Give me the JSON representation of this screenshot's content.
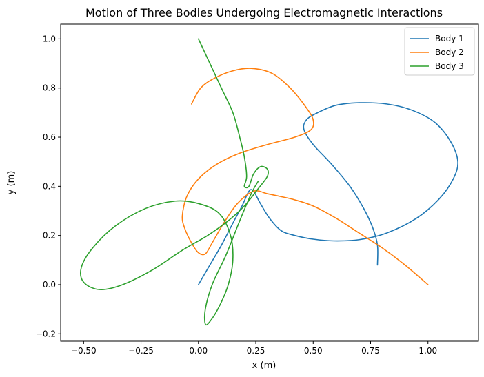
{
  "chart_data": {
    "type": "line",
    "title": "Motion of Three Bodies Undergoing Electromagnetic Interactions",
    "xlabel": "x (m)",
    "ylabel": "y (m)",
    "xlim": [
      -0.6,
      1.22
    ],
    "ylim": [
      -0.23,
      1.06
    ],
    "xticks": [
      -0.5,
      -0.25,
      0.0,
      0.25,
      0.5,
      0.75,
      1.0
    ],
    "xtick_labels": [
      "−0.50",
      "−0.25",
      "0.00",
      "0.25",
      "0.50",
      "0.75",
      "1.00"
    ],
    "yticks": [
      -0.2,
      0.0,
      0.2,
      0.4,
      0.6,
      0.8,
      1.0
    ],
    "ytick_labels": [
      "−0.2",
      "0.0",
      "0.2",
      "0.4",
      "0.6",
      "0.8",
      "1.0"
    ],
    "grid": false,
    "legend_position": "top-right",
    "series": [
      {
        "name": "Body 1",
        "color": "#1f77b4",
        "points": [
          [
            0.0,
            0.0
          ],
          [
            0.05,
            0.08
          ],
          [
            0.1,
            0.16
          ],
          [
            0.15,
            0.25
          ],
          [
            0.19,
            0.32
          ],
          [
            0.22,
            0.38
          ],
          [
            0.24,
            0.38
          ],
          [
            0.27,
            0.33
          ],
          [
            0.31,
            0.27
          ],
          [
            0.36,
            0.22
          ],
          [
            0.42,
            0.2
          ],
          [
            0.5,
            0.185
          ],
          [
            0.59,
            0.178
          ],
          [
            0.7,
            0.183
          ],
          [
            0.82,
            0.21
          ],
          [
            0.95,
            0.27
          ],
          [
            1.05,
            0.35
          ],
          [
            1.11,
            0.43
          ],
          [
            1.13,
            0.5
          ],
          [
            1.1,
            0.58
          ],
          [
            1.03,
            0.66
          ],
          [
            0.93,
            0.71
          ],
          [
            0.82,
            0.735
          ],
          [
            0.7,
            0.74
          ],
          [
            0.6,
            0.73
          ],
          [
            0.52,
            0.7
          ],
          [
            0.47,
            0.67
          ],
          [
            0.46,
            0.63
          ],
          [
            0.5,
            0.57
          ],
          [
            0.58,
            0.49
          ],
          [
            0.66,
            0.4
          ],
          [
            0.72,
            0.31
          ],
          [
            0.76,
            0.23
          ],
          [
            0.78,
            0.16
          ],
          [
            0.78,
            0.08
          ]
        ]
      },
      {
        "name": "Body 2",
        "color": "#ff7f0e",
        "points": [
          [
            1.0,
            0.0
          ],
          [
            0.9,
            0.08
          ],
          [
            0.8,
            0.15
          ],
          [
            0.7,
            0.21
          ],
          [
            0.6,
            0.27
          ],
          [
            0.5,
            0.32
          ],
          [
            0.42,
            0.345
          ],
          [
            0.35,
            0.36
          ],
          [
            0.3,
            0.37
          ],
          [
            0.24,
            0.38
          ],
          [
            0.17,
            0.33
          ],
          [
            0.11,
            0.25
          ],
          [
            0.06,
            0.17
          ],
          [
            0.03,
            0.125
          ],
          [
            0.0,
            0.13
          ],
          [
            -0.03,
            0.17
          ],
          [
            -0.06,
            0.23
          ],
          [
            -0.07,
            0.28
          ],
          [
            -0.05,
            0.36
          ],
          [
            0.0,
            0.43
          ],
          [
            0.08,
            0.49
          ],
          [
            0.18,
            0.535
          ],
          [
            0.3,
            0.57
          ],
          [
            0.42,
            0.6
          ],
          [
            0.49,
            0.63
          ],
          [
            0.5,
            0.67
          ],
          [
            0.47,
            0.72
          ],
          [
            0.4,
            0.8
          ],
          [
            0.32,
            0.86
          ],
          [
            0.23,
            0.88
          ],
          [
            0.15,
            0.87
          ],
          [
            0.07,
            0.84
          ],
          [
            0.01,
            0.8
          ],
          [
            -0.03,
            0.735
          ]
        ]
      },
      {
        "name": "Body 3",
        "color": "#2ca02c",
        "points": [
          [
            0.0,
            1.0
          ],
          [
            0.05,
            0.9
          ],
          [
            0.1,
            0.8
          ],
          [
            0.15,
            0.7
          ],
          [
            0.18,
            0.6
          ],
          [
            0.2,
            0.52
          ],
          [
            0.21,
            0.44
          ],
          [
            0.2,
            0.4
          ],
          [
            0.22,
            0.4
          ],
          [
            0.24,
            0.45
          ],
          [
            0.27,
            0.48
          ],
          [
            0.3,
            0.47
          ],
          [
            0.3,
            0.44
          ],
          [
            0.26,
            0.39
          ],
          [
            0.2,
            0.32
          ],
          [
            0.13,
            0.26
          ],
          [
            0.04,
            0.2
          ],
          [
            -0.07,
            0.14
          ],
          [
            -0.2,
            0.06
          ],
          [
            -0.33,
            0.0
          ],
          [
            -0.43,
            -0.02
          ],
          [
            -0.5,
            0.01
          ],
          [
            -0.51,
            0.07
          ],
          [
            -0.46,
            0.15
          ],
          [
            -0.36,
            0.24
          ],
          [
            -0.23,
            0.31
          ],
          [
            -0.1,
            0.34
          ],
          [
            0.0,
            0.33
          ],
          [
            0.09,
            0.29
          ],
          [
            0.14,
            0.2
          ],
          [
            0.15,
            0.1
          ],
          [
            0.13,
            0.0
          ],
          [
            0.09,
            -0.09
          ],
          [
            0.05,
            -0.15
          ],
          [
            0.03,
            -0.16
          ],
          [
            0.03,
            -0.1
          ],
          [
            0.06,
            0.0
          ],
          [
            0.12,
            0.12
          ],
          [
            0.18,
            0.26
          ],
          [
            0.23,
            0.37
          ],
          [
            0.26,
            0.42
          ]
        ]
      }
    ]
  }
}
